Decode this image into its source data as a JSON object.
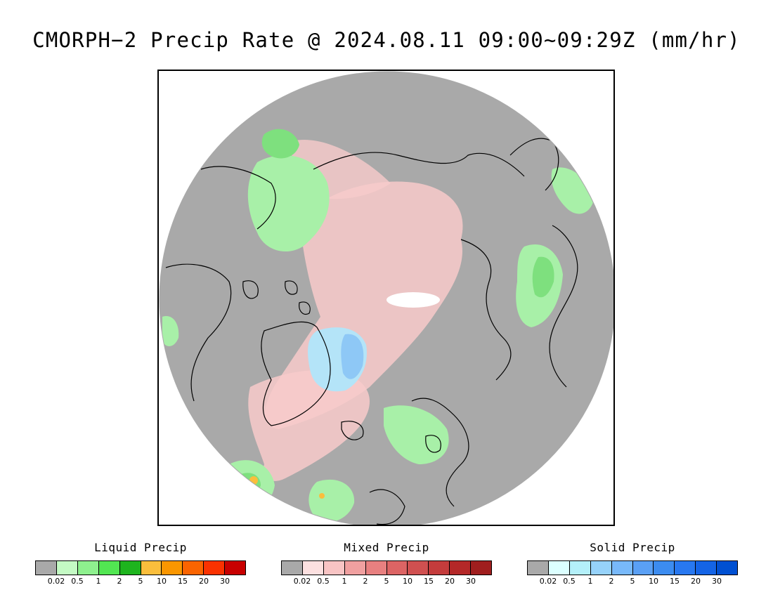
{
  "title": "CMORPH−2 Precip Rate @ 2024.08.11 09:00~09:29Z (mm/hr)",
  "map": {
    "projection": "polar stereographic (north pole)",
    "background_color": "#a9a9a9",
    "coastline_color": "#000000"
  },
  "legends": [
    {
      "title": "Liquid Precip",
      "colors": [
        "#a9a9a9",
        "#c4fac4",
        "#8ef08e",
        "#52e652",
        "#1eb41e",
        "#fabe3c",
        "#fa9600",
        "#fa6400",
        "#fa3200",
        "#c80000"
      ],
      "ticks": [
        "0.02",
        "0.5",
        "1",
        "2",
        "5",
        "10",
        "15",
        "20",
        "30"
      ]
    },
    {
      "title": "Mixed Precip",
      "colors": [
        "#a9a9a9",
        "#fce0e0",
        "#f8c4c4",
        "#f0a0a0",
        "#e88080",
        "#dc6464",
        "#d05050",
        "#c43c3c",
        "#b42828",
        "#a01e1e"
      ],
      "ticks": [
        "0.02",
        "0.5",
        "1",
        "2",
        "5",
        "10",
        "15",
        "20",
        "30"
      ]
    },
    {
      "title": "Solid Precip",
      "colors": [
        "#a9a9a9",
        "#dcffff",
        "#b4f0fa",
        "#96d2fa",
        "#78b9fa",
        "#5aa0f5",
        "#3c8cf0",
        "#2878f0",
        "#1464e6",
        "#0050d2"
      ],
      "ticks": [
        "0.02",
        "0.5",
        "1",
        "2",
        "5",
        "10",
        "15",
        "20",
        "30"
      ]
    }
  ]
}
